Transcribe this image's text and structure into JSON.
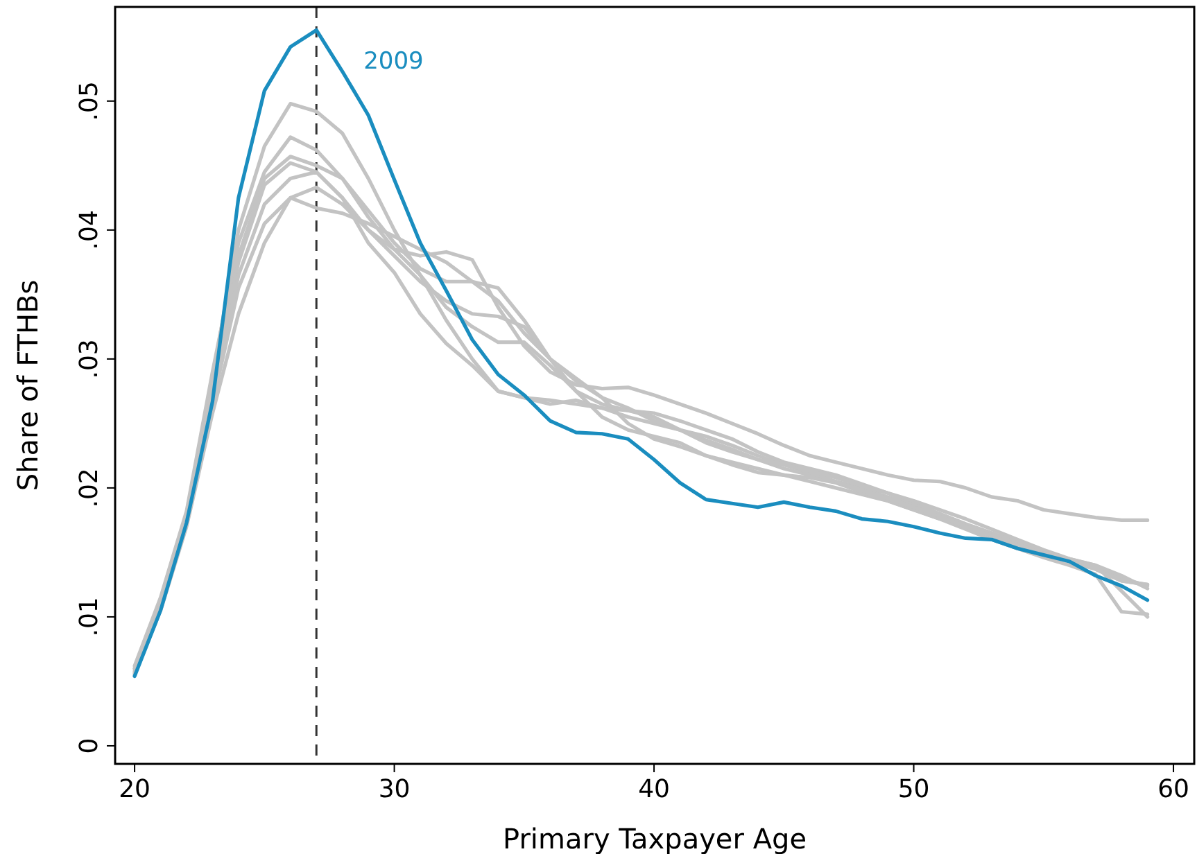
{
  "chart_data": {
    "type": "line",
    "xlabel": "Primary Taxpayer Age",
    "ylabel": "Share of FTHBs",
    "x": [
      20,
      21,
      22,
      23,
      24,
      25,
      26,
      27,
      28,
      29,
      30,
      31,
      32,
      33,
      34,
      35,
      36,
      37,
      38,
      39,
      40,
      41,
      42,
      43,
      44,
      45,
      46,
      47,
      48,
      49,
      50,
      51,
      52,
      53,
      54,
      55,
      56,
      57,
      58,
      59
    ],
    "xlim": [
      19.25,
      60.8
    ],
    "xticks": [
      20,
      30,
      40,
      50,
      60
    ],
    "ylim": [
      -0.0014,
      0.0573
    ],
    "yticks": [
      {
        "value": 0,
        "label": "0"
      },
      {
        "value": 0.01,
        "label": ".01"
      },
      {
        "value": 0.02,
        "label": ".02"
      },
      {
        "value": 0.03,
        "label": ".03"
      },
      {
        "value": 0.04,
        "label": ".04"
      },
      {
        "value": 0.05,
        "label": ".05"
      }
    ],
    "grid": false,
    "marker": "none",
    "line_style": "solid",
    "ref_lines": [
      {
        "axis": "x",
        "value": 27,
        "color": "#333333",
        "line_style": "dashed"
      }
    ],
    "series": [
      {
        "color": "#c3c3c3",
        "values": [
          0.006,
          0.0112,
          0.018,
          0.0285,
          0.04,
          0.0465,
          0.0498,
          0.0492,
          0.0475,
          0.044,
          0.04,
          0.0365,
          0.033,
          0.03,
          0.0275,
          0.027,
          0.0265,
          0.0268,
          0.0262,
          0.0255,
          0.025,
          0.0245,
          0.0237,
          0.023,
          0.0222,
          0.0215,
          0.021,
          0.0205,
          0.02,
          0.0193,
          0.0187,
          0.018,
          0.0172,
          0.0165,
          0.0158,
          0.015,
          0.0143,
          0.0137,
          0.0128,
          0.0125
        ]
      },
      {
        "color": "#c3c3c3",
        "values": [
          0.0062,
          0.0115,
          0.0182,
          0.029,
          0.039,
          0.0445,
          0.0472,
          0.0462,
          0.044,
          0.041,
          0.0385,
          0.038,
          0.0383,
          0.0377,
          0.034,
          0.031,
          0.029,
          0.028,
          0.0277,
          0.0278,
          0.0272,
          0.0265,
          0.0258,
          0.025,
          0.0242,
          0.0233,
          0.0225,
          0.022,
          0.0215,
          0.021,
          0.0206,
          0.0205,
          0.02,
          0.0193,
          0.019,
          0.0183,
          0.018,
          0.0177,
          0.0175,
          0.0175
        ]
      },
      {
        "color": "#c3c3c3",
        "values": [
          0.006,
          0.011,
          0.0178,
          0.028,
          0.038,
          0.044,
          0.0457,
          0.045,
          0.044,
          0.0415,
          0.039,
          0.037,
          0.036,
          0.036,
          0.0355,
          0.033,
          0.03,
          0.0275,
          0.0265,
          0.026,
          0.0258,
          0.0252,
          0.0245,
          0.0238,
          0.0228,
          0.022,
          0.0215,
          0.021,
          0.0203,
          0.0196,
          0.0188,
          0.018,
          0.0172,
          0.0165,
          0.0158,
          0.015,
          0.0143,
          0.0138,
          0.013,
          0.0124
        ]
      },
      {
        "color": "#c3c3c3",
        "values": [
          0.0058,
          0.011,
          0.0176,
          0.0275,
          0.0375,
          0.0435,
          0.0452,
          0.0445,
          0.0425,
          0.04,
          0.038,
          0.036,
          0.0345,
          0.0335,
          0.0333,
          0.0325,
          0.03,
          0.0285,
          0.027,
          0.025,
          0.0238,
          0.0232,
          0.0225,
          0.022,
          0.0215,
          0.021,
          0.0205,
          0.02,
          0.0195,
          0.019,
          0.0183,
          0.0176,
          0.0168,
          0.016,
          0.0153,
          0.0146,
          0.014,
          0.0133,
          0.0104,
          0.0102
        ]
      },
      {
        "color": "#c3c3c3",
        "values": [
          0.0057,
          0.0108,
          0.0172,
          0.0265,
          0.0355,
          0.0405,
          0.0425,
          0.0433,
          0.042,
          0.04,
          0.0385,
          0.0365,
          0.034,
          0.0325,
          0.0313,
          0.0313,
          0.0295,
          0.0275,
          0.0255,
          0.0245,
          0.024,
          0.0235,
          0.0225,
          0.0218,
          0.0212,
          0.021,
          0.0208,
          0.0204,
          0.0197,
          0.019,
          0.0183,
          0.0176,
          0.017,
          0.0163,
          0.0156,
          0.015,
          0.0145,
          0.014,
          0.012,
          0.01
        ]
      },
      {
        "color": "#c3c3c3",
        "values": [
          0.0055,
          0.0105,
          0.017,
          0.0258,
          0.0335,
          0.039,
          0.0425,
          0.0417,
          0.0413,
          0.0405,
          0.0395,
          0.0385,
          0.0375,
          0.036,
          0.0345,
          0.032,
          0.03,
          0.0283,
          0.027,
          0.0262,
          0.0252,
          0.0245,
          0.024,
          0.0233,
          0.0225,
          0.0218,
          0.0212,
          0.0205,
          0.0198,
          0.0192,
          0.0185,
          0.0178,
          0.017,
          0.0163,
          0.0155,
          0.015,
          0.0143,
          0.0137,
          0.0128,
          0.0125
        ]
      },
      {
        "color": "#c3c3c3",
        "values": [
          0.0056,
          0.0107,
          0.0175,
          0.027,
          0.0365,
          0.042,
          0.044,
          0.0445,
          0.0425,
          0.039,
          0.0367,
          0.0335,
          0.0312,
          0.0295,
          0.0275,
          0.027,
          0.0268,
          0.0265,
          0.0262,
          0.026,
          0.0255,
          0.0245,
          0.0235,
          0.0228,
          0.0222,
          0.0218,
          0.0213,
          0.0208,
          0.0202,
          0.0196,
          0.019,
          0.0183,
          0.0176,
          0.0168,
          0.016,
          0.0152,
          0.0145,
          0.014,
          0.0132,
          0.0122
        ]
      },
      {
        "name": "2009",
        "color": "#1a8dbf",
        "values": [
          0.0054,
          0.0105,
          0.0173,
          0.0267,
          0.0425,
          0.0508,
          0.0542,
          0.0555,
          0.0523,
          0.0489,
          0.0439,
          0.039,
          0.0353,
          0.0315,
          0.0288,
          0.0272,
          0.0252,
          0.0243,
          0.0242,
          0.0238,
          0.0222,
          0.0204,
          0.0191,
          0.0188,
          0.0185,
          0.0189,
          0.0185,
          0.0182,
          0.0176,
          0.0174,
          0.017,
          0.0165,
          0.0161,
          0.016,
          0.0153,
          0.0148,
          0.0143,
          0.0132,
          0.0124,
          0.0113
        ]
      }
    ]
  }
}
